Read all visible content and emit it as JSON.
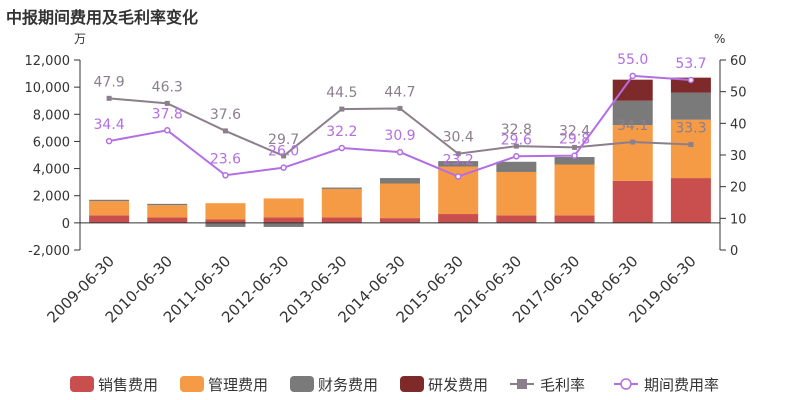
{
  "title": "中报期间费用及毛利率变化",
  "chart_data": {
    "type": "bar",
    "title": "中报期间费用及毛利率变化",
    "left_unit": "万",
    "right_unit": "%",
    "categories": [
      "2009-06-30",
      "2010-06-30",
      "2011-06-30",
      "2012-06-30",
      "2013-06-30",
      "2014-06-30",
      "2015-06-30",
      "2016-06-30",
      "2017-06-30",
      "2018-06-30",
      "2019-06-30"
    ],
    "left_axis": {
      "min": -2000,
      "max": 12000,
      "ticks": [
        -2000,
        0,
        2000,
        4000,
        6000,
        8000,
        10000,
        12000
      ],
      "tick_labels": [
        "-2,000",
        "0",
        "2,000",
        "4,000",
        "6,000",
        "8,000",
        "10,000",
        "12,000"
      ]
    },
    "right_axis": {
      "min": 0,
      "max": 60,
      "ticks": [
        0,
        10,
        20,
        30,
        40,
        50,
        60
      ],
      "tick_labels": [
        "0",
        "10",
        "20",
        "30",
        "40",
        "50",
        "60"
      ]
    },
    "bar_series": [
      {
        "name": "销售费用",
        "color": "#c94f4f",
        "values": [
          550,
          400,
          250,
          400,
          400,
          350,
          650,
          550,
          550,
          3100,
          3300
        ]
      },
      {
        "name": "管理费用",
        "color": "#f59a45",
        "values": [
          1050,
          900,
          1200,
          1400,
          2100,
          2550,
          3500,
          3200,
          3750,
          4100,
          4300
        ]
      },
      {
        "name": "财务费用",
        "color": "#7a7a7a",
        "values": [
          100,
          100,
          -300,
          -300,
          100,
          400,
          400,
          750,
          550,
          1800,
          2000
        ]
      },
      {
        "name": "研发费用",
        "color": "#7f2a2a",
        "values": [
          0,
          0,
          0,
          0,
          0,
          0,
          0,
          0,
          0,
          1550,
          1100
        ]
      }
    ],
    "line_series": [
      {
        "name": "毛利率",
        "color": "#8c7f8c",
        "marker": "square",
        "values": [
          47.9,
          46.3,
          37.6,
          29.7,
          44.5,
          44.7,
          30.4,
          32.8,
          32.4,
          34.1,
          33.3
        ],
        "labels": [
          "47.9",
          "46.3",
          "37.6",
          "29.7",
          "44.5",
          "44.7",
          "30.4",
          "32.8",
          "32.4",
          "34.1",
          "33.3"
        ]
      },
      {
        "name": "期间费用率",
        "color": "#b36ee3",
        "marker": "circle",
        "values": [
          34.4,
          37.8,
          23.6,
          26.0,
          32.2,
          30.9,
          23.2,
          29.6,
          29.8,
          55.0,
          53.7
        ],
        "labels": [
          "34.4",
          "37.8",
          "23.6",
          "26.0",
          "32.2",
          "30.9",
          "23.2",
          "29.6",
          "29.8",
          "55.0",
          "53.7"
        ]
      }
    ],
    "legend_position": "bottom"
  }
}
